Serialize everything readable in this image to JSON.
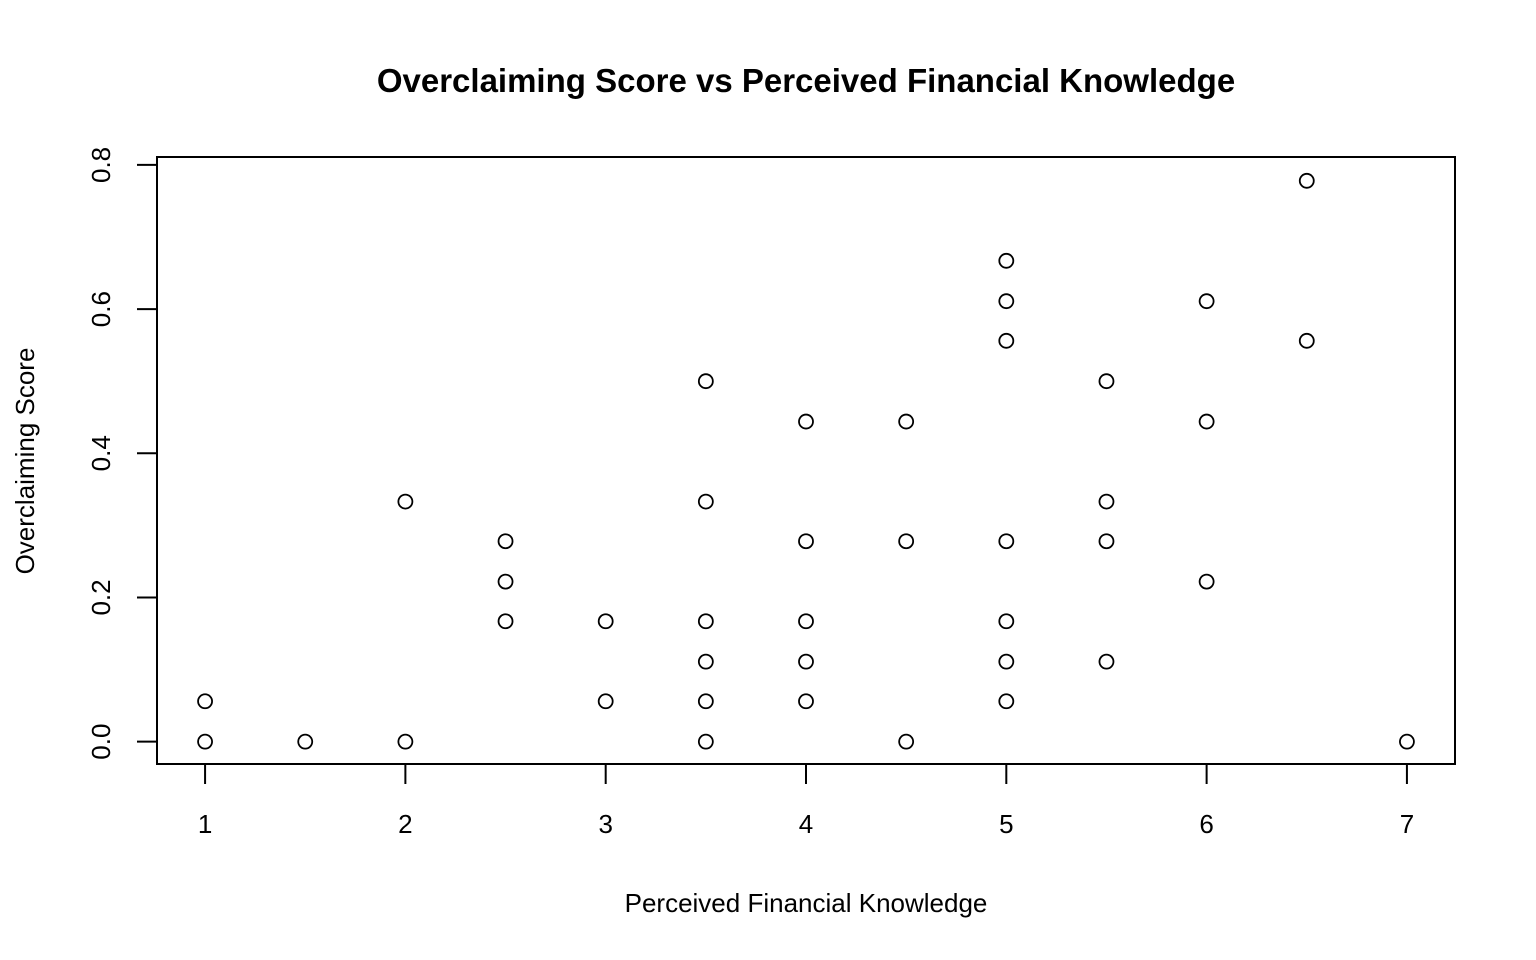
{
  "chart_data": {
    "type": "scatter",
    "title": "Overclaiming Score vs Perceived Financial Knowledge",
    "xlabel": "Perceived Financial Knowledge",
    "ylabel": "Overclaiming Score",
    "xlim": [
      0.76,
      7.24
    ],
    "ylim": [
      -0.031,
      0.811
    ],
    "xticks": [
      1,
      2,
      3,
      4,
      5,
      6,
      7
    ],
    "yticks": [
      0.0,
      0.2,
      0.4,
      0.6,
      0.8
    ],
    "xtick_labels": [
      "1",
      "2",
      "3",
      "4",
      "5",
      "6",
      "7"
    ],
    "ytick_labels": [
      "0.0",
      "0.2",
      "0.4",
      "0.6",
      "0.8"
    ],
    "grid": false,
    "marker": "open-circle",
    "colors": {
      "marker": "#000000",
      "axes": "#000000",
      "background": "#ffffff"
    },
    "points": [
      [
        1.0,
        0.056
      ],
      [
        1.0,
        0.0
      ],
      [
        1.5,
        0.0
      ],
      [
        2.0,
        0.333
      ],
      [
        2.0,
        0.0
      ],
      [
        2.5,
        0.278
      ],
      [
        2.5,
        0.222
      ],
      [
        2.5,
        0.167
      ],
      [
        3.0,
        0.167
      ],
      [
        3.0,
        0.056
      ],
      [
        3.5,
        0.5
      ],
      [
        3.5,
        0.333
      ],
      [
        3.5,
        0.167
      ],
      [
        3.5,
        0.111
      ],
      [
        3.5,
        0.056
      ],
      [
        3.5,
        0.0
      ],
      [
        4.0,
        0.444
      ],
      [
        4.0,
        0.278
      ],
      [
        4.0,
        0.167
      ],
      [
        4.0,
        0.111
      ],
      [
        4.0,
        0.056
      ],
      [
        4.5,
        0.444
      ],
      [
        4.5,
        0.278
      ],
      [
        4.5,
        0.0
      ],
      [
        5.0,
        0.667
      ],
      [
        5.0,
        0.611
      ],
      [
        5.0,
        0.556
      ],
      [
        5.0,
        0.278
      ],
      [
        5.0,
        0.167
      ],
      [
        5.0,
        0.111
      ],
      [
        5.0,
        0.056
      ],
      [
        5.5,
        0.5
      ],
      [
        5.5,
        0.333
      ],
      [
        5.5,
        0.278
      ],
      [
        5.5,
        0.111
      ],
      [
        6.0,
        0.611
      ],
      [
        6.0,
        0.444
      ],
      [
        6.0,
        0.222
      ],
      [
        6.5,
        0.778
      ],
      [
        6.5,
        0.556
      ],
      [
        7.0,
        0.0
      ]
    ]
  }
}
